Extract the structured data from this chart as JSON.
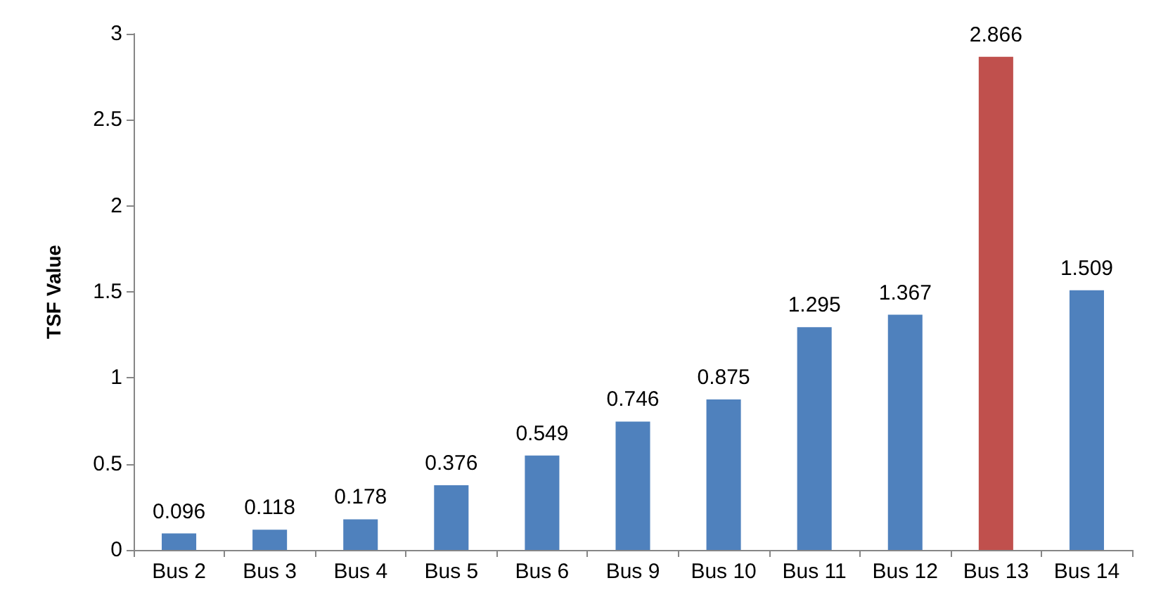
{
  "chart_data": {
    "type": "bar",
    "ylabel": "TSF Value",
    "categories": [
      "Bus 2",
      "Bus 3",
      "Bus 4",
      "Bus 5",
      "Bus 6",
      "Bus 9",
      "Bus 10",
      "Bus 11",
      "Bus 12",
      "Bus 13",
      "Bus 14"
    ],
    "values": [
      0.096,
      0.118,
      0.178,
      0.376,
      0.549,
      0.746,
      0.875,
      1.295,
      1.367,
      2.866,
      1.509
    ],
    "colors": [
      "#4f81bd",
      "#4f81bd",
      "#4f81bd",
      "#4f81bd",
      "#4f81bd",
      "#4f81bd",
      "#4f81bd",
      "#4f81bd",
      "#4f81bd",
      "#c0504d",
      "#4f81bd"
    ],
    "ylim": [
      0,
      3
    ],
    "yticks": [
      0,
      0.5,
      1,
      1.5,
      2,
      2.5,
      3
    ],
    "grid": false,
    "data_labels": true
  }
}
